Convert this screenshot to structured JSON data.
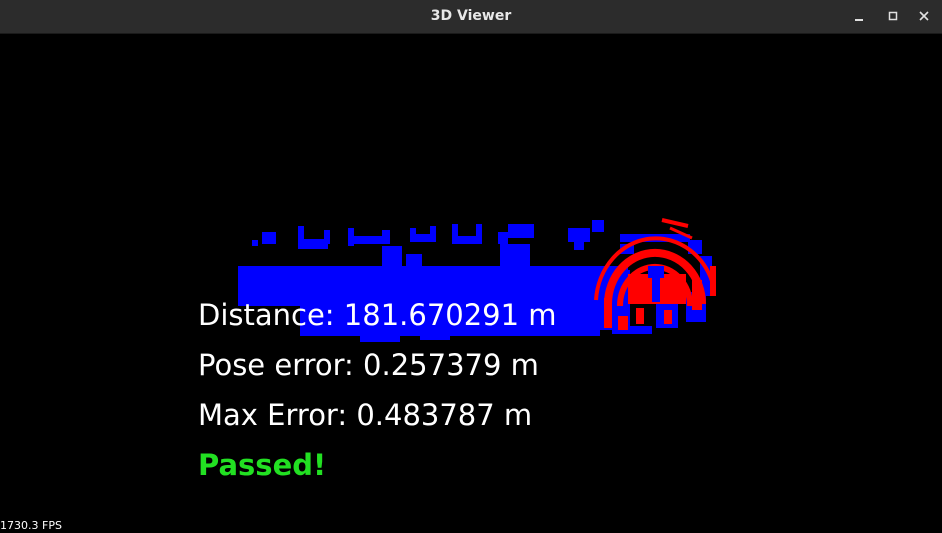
{
  "window": {
    "title": "3D Viewer",
    "minimize_icon": "minimize-icon",
    "maximize_icon": "maximize-icon",
    "close_icon": "close-icon"
  },
  "overlay": {
    "distance_text": "Distance: 181.670291 m",
    "pose_error_text": "Pose error: 0.257379 m",
    "max_error_text": "Max Error: 0.483787 m",
    "status_text": "Passed!"
  },
  "status": {
    "fps_text": "1730.3 FPS"
  },
  "colors": {
    "reference_cloud": "#0000ff",
    "scan_cloud": "#ff0000",
    "pass_color": "#22e022",
    "text_color": "#ffffff"
  }
}
